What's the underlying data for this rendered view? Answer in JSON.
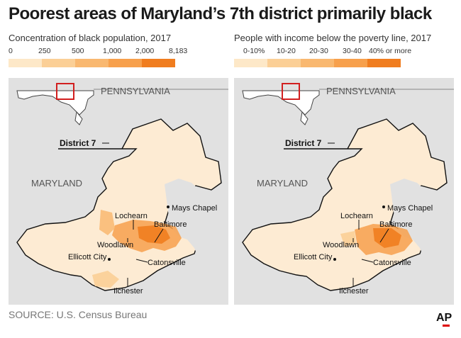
{
  "title": "Poorest areas of Maryland’s 7th district primarily black",
  "left_panel": {
    "subtitle": "Concentration of black population, 2017",
    "legend": {
      "labels": [
        "0",
        "250",
        "500",
        "1,000",
        "2,000",
        "8,183"
      ],
      "colors": [
        "#fde8c8",
        "#fbcf96",
        "#f9b870",
        "#f7a04c",
        "#f07d1f"
      ]
    }
  },
  "right_panel": {
    "subtitle": "People with income below the poverty line, 2017",
    "legend": {
      "labels": [
        "0-10%",
        "10-20",
        "20-30",
        "30-40",
        "40% or more"
      ],
      "colors": [
        "#fde8c8",
        "#fbcf96",
        "#f9b870",
        "#f7a04c",
        "#f07d1f"
      ]
    }
  },
  "map_labels": {
    "state_north": "PENNSYLVANIA",
    "state": "MARYLAND",
    "district": "District 7",
    "places": [
      "Mays Chapel",
      "Lochearn",
      "Baltimore",
      "Woodlawn",
      "Ellicott City",
      "Catonsville",
      "Ilchester"
    ]
  },
  "map_colors": {
    "background": "#e1e1e1",
    "district_fill": "#fdebd3",
    "outline": "#111111",
    "inset_box": "#d21f1f",
    "water": "#ffffff"
  },
  "source": "SOURCE: U.S. Census Bureau",
  "credit": "AP"
}
